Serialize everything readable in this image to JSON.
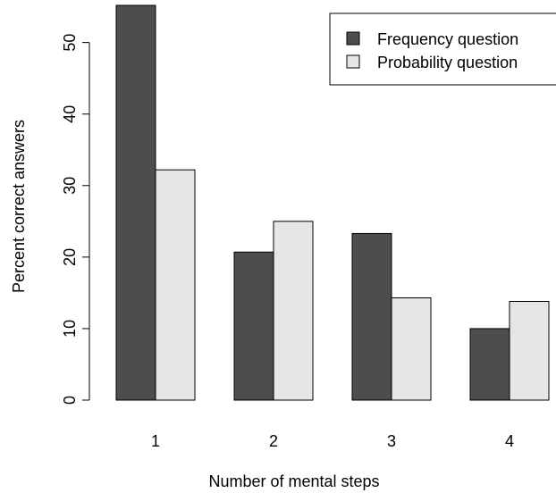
{
  "chart_data": {
    "type": "bar",
    "title": "",
    "xlabel": "Number of mental steps",
    "ylabel": "Percent correct answers",
    "categories": [
      "1",
      "2",
      "3",
      "4"
    ],
    "series": [
      {
        "name": "Frequency question",
        "values": [
          55.2,
          20.7,
          23.3,
          10.0
        ]
      },
      {
        "name": "Probability question",
        "values": [
          32.2,
          25.0,
          14.3,
          13.8
        ]
      }
    ],
    "ylim": [
      0,
      55.2
    ],
    "yticks": [
      0,
      10,
      20,
      30,
      40,
      50
    ],
    "grid": false,
    "legend_position": "top-right"
  },
  "colors": {
    "frequency_fill": "#4d4d4d",
    "probability_fill": "#e6e6e6",
    "stroke": "#000000"
  }
}
